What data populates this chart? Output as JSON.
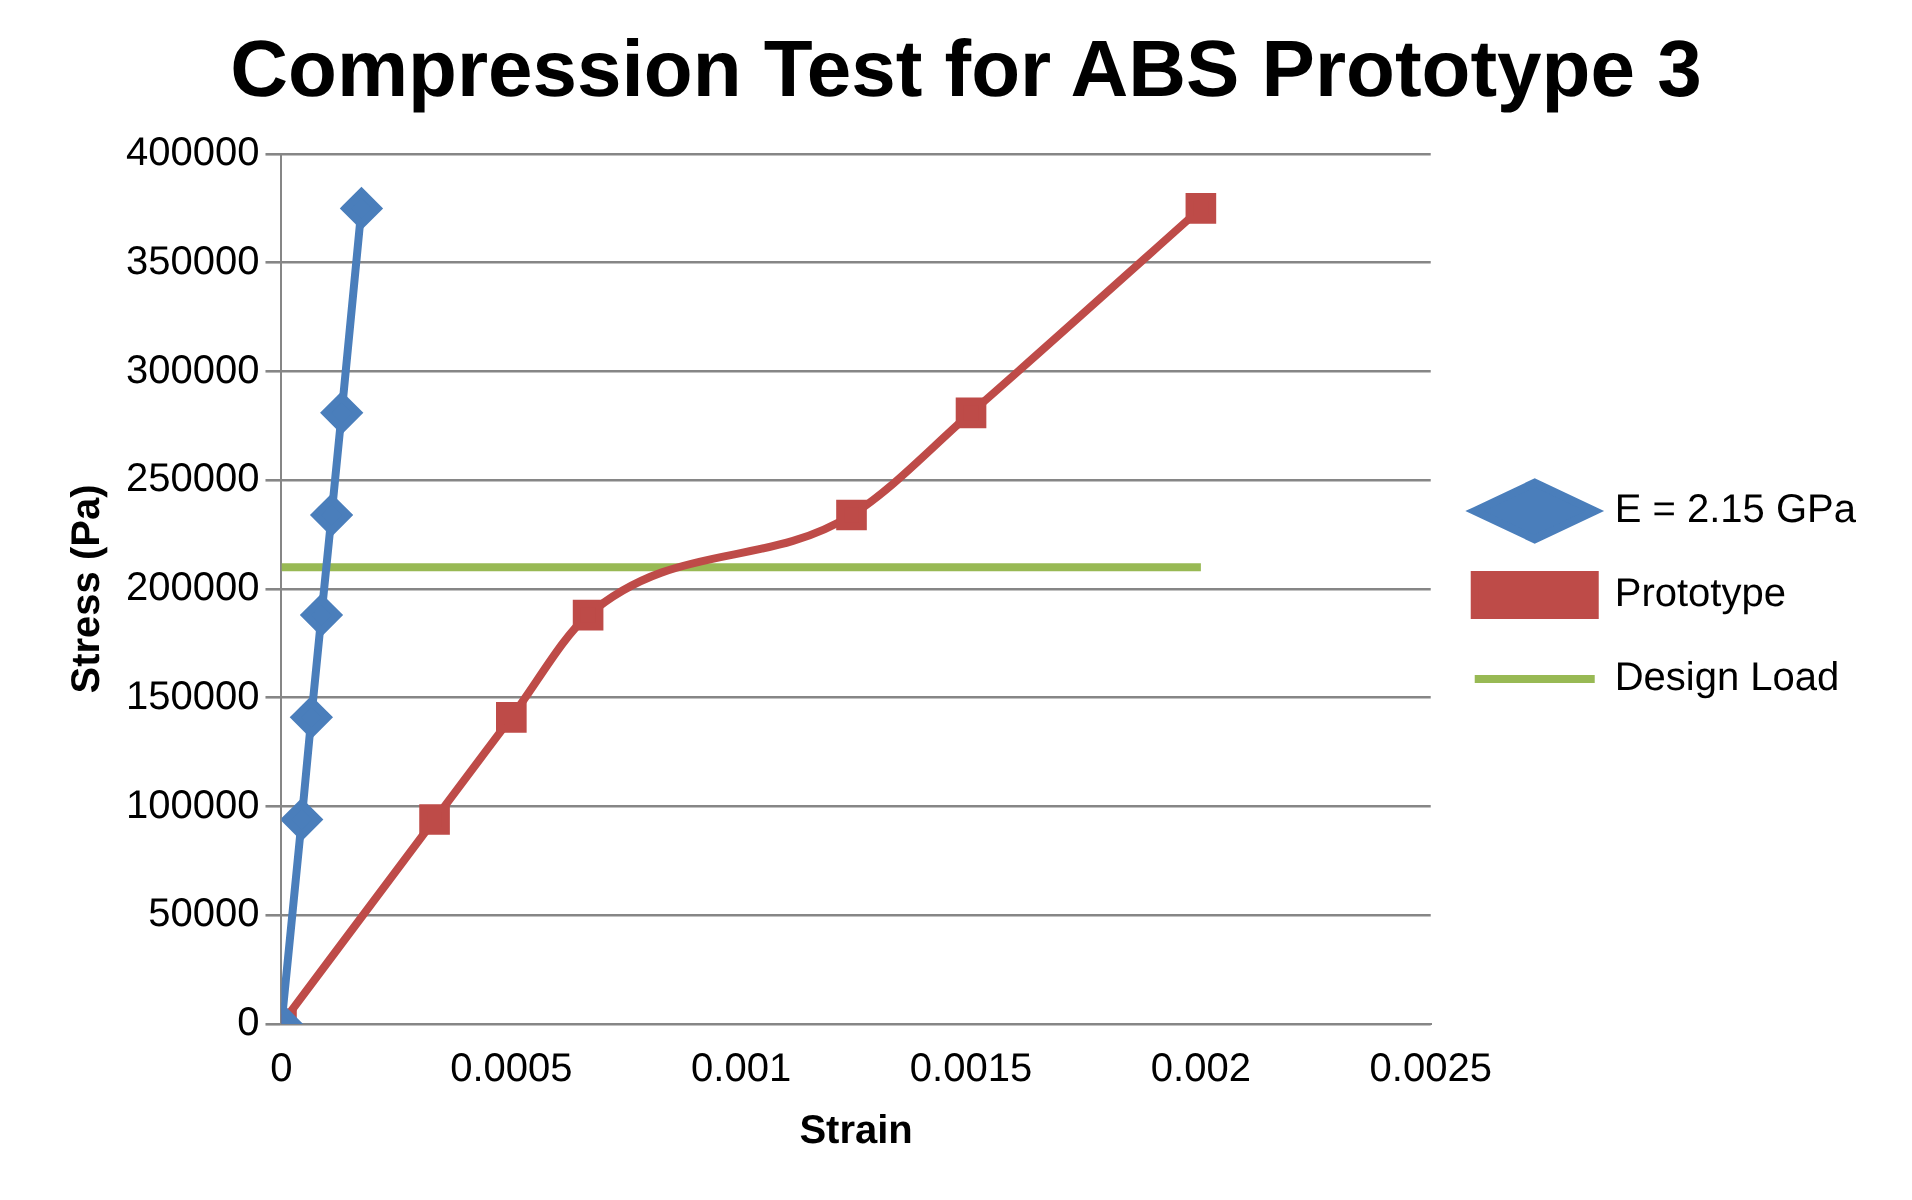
{
  "chart_data": {
    "type": "line",
    "title": "Compression Test for ABS Prototype 3",
    "xlabel": "Strain",
    "ylabel": "Stress (Pa)",
    "xlim": [
      0,
      0.0025
    ],
    "xticks": [
      0,
      0.0005,
      0.001,
      0.0015,
      0.002,
      0.0025
    ],
    "ylim": [
      0,
      400000
    ],
    "yticks": [
      0,
      50000,
      100000,
      150000,
      200000,
      250000,
      300000,
      350000,
      400000
    ],
    "grid": "y",
    "legend": "right",
    "series": [
      {
        "name": "E = 2.15 GPa",
        "color": "#4a7ebb",
        "marker": "diamond",
        "x": [
          0,
          4.4e-05,
          6.5e-05,
          8.7e-05,
          0.000109,
          0.000131,
          0.000174
        ],
        "values": [
          0,
          94000,
          141000,
          188000,
          234000,
          281000,
          375000
        ]
      },
      {
        "name": "Prototype",
        "color": "#be4b48",
        "marker": "square",
        "x": [
          0,
          0.000333,
          0.0005,
          0.000667,
          0.00124,
          0.0015,
          0.002
        ],
        "values": [
          0,
          94000,
          141000,
          188000,
          234000,
          281000,
          375000
        ]
      },
      {
        "name": "Design Load",
        "color": "#98b954",
        "marker": "none",
        "x": [
          0,
          0.002
        ],
        "values": [
          210000,
          210000
        ]
      }
    ]
  }
}
